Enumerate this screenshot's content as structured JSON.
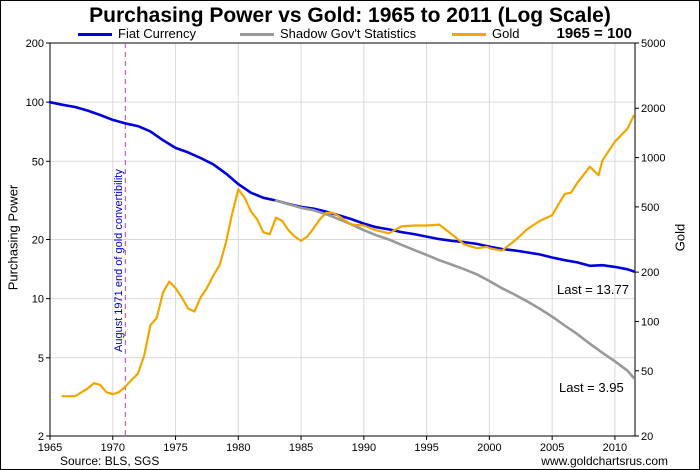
{
  "header": {
    "title": "Purchasing Power vs Gold: 1965 to 2011 (Log Scale)",
    "base_note": "1965 = 100"
  },
  "footer": {
    "source": "Source: BLS, SGS",
    "website": "www.goldchartsrus.com"
  },
  "colors": {
    "fiat": "#0000dd",
    "shadow": "#999999",
    "gold": "#f0a800",
    "grid": "#d9d9d9",
    "annotation": "#0000cc",
    "event_line": "#cc33cc"
  },
  "chart_data": {
    "type": "line",
    "title": "Purchasing Power vs Gold: 1965 to 2011 (Log Scale)",
    "xlabel": "",
    "ylabel_left": "Purchasing Power",
    "ylabel_right": "Gold",
    "xlim": [
      1965,
      2011.6
    ],
    "x_ticks": [
      1965,
      1970,
      1975,
      1980,
      1985,
      1990,
      1995,
      2000,
      2005,
      2010
    ],
    "y_left": {
      "scale": "log",
      "lim": [
        2,
        200
      ],
      "ticks": [
        2,
        5,
        10,
        20,
        50,
        100,
        200
      ]
    },
    "y_right": {
      "scale": "log",
      "lim": [
        20,
        5000
      ],
      "ticks": [
        20,
        50,
        100,
        200,
        500,
        1000,
        2000,
        5000
      ]
    },
    "grid": true,
    "legend_position": "top",
    "series": [
      {
        "name": "Fiat Currency",
        "axis": "left",
        "color": "#0000dd",
        "x": [
          1965,
          1966,
          1967,
          1968,
          1969,
          1970,
          1971,
          1972,
          1973,
          1974,
          1975,
          1976,
          1977,
          1978,
          1979,
          1980,
          1981,
          1982,
          1983,
          1984,
          1985,
          1986,
          1987,
          1988,
          1989,
          1990,
          1991,
          1992,
          1993,
          1994,
          1995,
          1996,
          1997,
          1998,
          1999,
          2000,
          2001,
          2002,
          2003,
          2004,
          2005,
          2006,
          2007,
          2008,
          2009,
          2010,
          2011,
          2011.5
        ],
        "y": [
          100,
          97,
          94.5,
          90.6,
          86,
          81.2,
          78,
          75.5,
          71,
          64,
          58.5,
          55.5,
          52,
          48.3,
          43.4,
          38.3,
          34.6,
          32.6,
          31.6,
          30.3,
          29.3,
          28.7,
          27.7,
          26.6,
          25.4,
          24.1,
          23.1,
          22.5,
          21.8,
          21.3,
          20.7,
          20.1,
          19.7,
          19.4,
          19,
          18.4,
          17.9,
          17.6,
          17.2,
          16.8,
          16.2,
          15.7,
          15.3,
          14.7,
          14.8,
          14.5,
          14.1,
          13.77
        ]
      },
      {
        "name": "Shadow Gov't Statistics",
        "axis": "left",
        "color": "#999999",
        "x": [
          1983,
          1984,
          1985,
          1986,
          1987,
          1988,
          1989,
          1990,
          1991,
          1992,
          1993,
          1994,
          1995,
          1996,
          1997,
          1998,
          1999,
          2000,
          2001,
          2002,
          2003,
          2004,
          2005,
          2006,
          2007,
          2008,
          2009,
          2010,
          2011,
          2011.5
        ],
        "y": [
          31.6,
          30.2,
          29.0,
          28.2,
          26.9,
          25.4,
          23.9,
          22.3,
          21.0,
          20.0,
          18.8,
          17.7,
          16.7,
          15.7,
          14.9,
          14.1,
          13.3,
          12.3,
          11.3,
          10.5,
          9.7,
          8.9,
          8.1,
          7.3,
          6.6,
          5.9,
          5.3,
          4.8,
          4.3,
          3.95
        ]
      },
      {
        "name": "Gold",
        "axis": "right",
        "color": "#f0a800",
        "x": [
          1966,
          1967,
          1968,
          1968.5,
          1969,
          1969.5,
          1970,
          1970.5,
          1971,
          1971.5,
          1972,
          1972.5,
          1973,
          1973.5,
          1974,
          1974.5,
          1975,
          1975.5,
          1976,
          1976.5,
          1977,
          1977.5,
          1978,
          1978.5,
          1979,
          1979.5,
          1980,
          1980.5,
          1981,
          1981.5,
          1982,
          1982.5,
          1983,
          1983.5,
          1984,
          1984.5,
          1985,
          1985.5,
          1986,
          1986.5,
          1987,
          1987.5,
          1988,
          1989,
          1990,
          1991,
          1992,
          1993,
          1994,
          1995,
          1996,
          1997,
          1998,
          1999,
          1999.8,
          2000,
          2001,
          2002,
          2003,
          2004,
          2005,
          2006,
          2006.5,
          2007,
          2008,
          2008.7,
          2009,
          2010,
          2011,
          2011.5
        ],
        "y": [
          35,
          35,
          39,
          42,
          41,
          37,
          36,
          37,
          40,
          44,
          48,
          62,
          95,
          105,
          150,
          175,
          160,
          140,
          120,
          115,
          140,
          160,
          190,
          220,
          300,
          450,
          640,
          570,
          470,
          420,
          350,
          340,
          430,
          410,
          360,
          330,
          310,
          330,
          370,
          420,
          460,
          460,
          440,
          390,
          385,
          360,
          345,
          380,
          385,
          385,
          390,
          340,
          295,
          280,
          285,
          280,
          270,
          310,
          365,
          410,
          445,
          600,
          610,
          700,
          880,
          780,
          960,
          1250,
          1500,
          1800
        ]
      }
    ],
    "annotations": [
      {
        "text": "August 1971 end of gold convertibility",
        "x": 1971,
        "orientation": "vertical"
      },
      {
        "text": "Last = 13.77",
        "series": "Fiat Currency"
      },
      {
        "text": "Last = 3.95",
        "series": "Shadow Gov't Statistics"
      }
    ]
  }
}
